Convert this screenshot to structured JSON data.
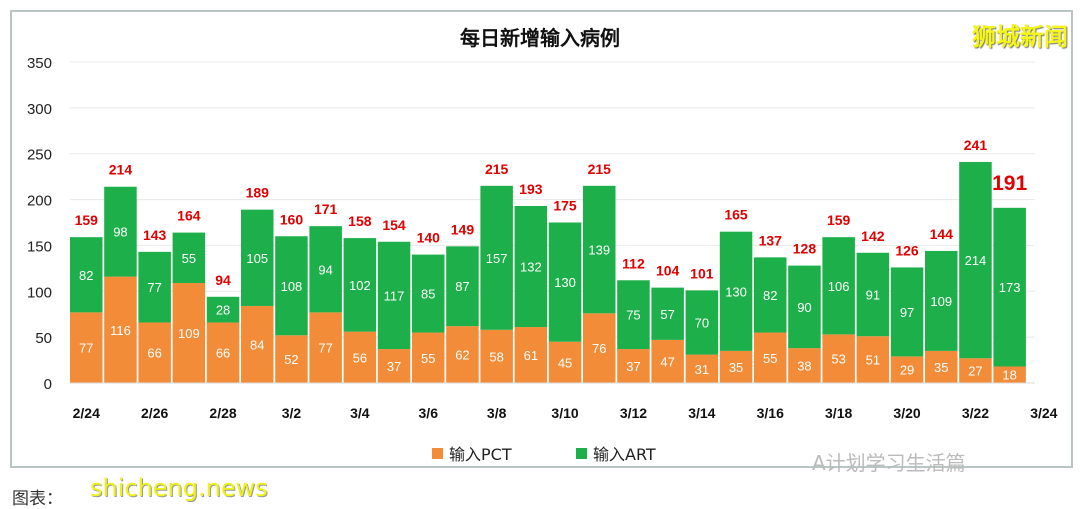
{
  "brand": "狮城新闻",
  "watermark_bottom": "A计划学习生活篇",
  "watermark_site": "shicheng.news",
  "caption": "图表：",
  "chart_data": {
    "type": "bar",
    "stacked": true,
    "title": "每日新增输入病例",
    "categories": [
      "2/24",
      "2/25",
      "2/26",
      "2/27",
      "2/28",
      "3/1",
      "3/2",
      "3/3",
      "3/4",
      "3/5",
      "3/6",
      "3/7",
      "3/8",
      "3/9",
      "3/10",
      "3/11",
      "3/12",
      "3/13",
      "3/14",
      "3/15",
      "3/16",
      "3/17",
      "3/18",
      "3/19",
      "3/20",
      "3/21",
      "3/22",
      "3/23"
    ],
    "x_tick_labels": [
      "2/24",
      "2/26",
      "2/28",
      "3/2",
      "3/4",
      "3/6",
      "3/8",
      "3/10",
      "3/12",
      "3/14",
      "3/16",
      "3/18",
      "3/20",
      "3/22",
      "3/24"
    ],
    "series": [
      {
        "name": "输入PCT",
        "color": "#F28C38",
        "values": [
          77,
          116,
          66,
          109,
          66,
          84,
          52,
          77,
          56,
          37,
          55,
          62,
          58,
          61,
          45,
          76,
          37,
          47,
          31,
          35,
          55,
          38,
          53,
          51,
          29,
          35,
          27,
          18
        ]
      },
      {
        "name": "输入ART",
        "color": "#1DAF4A",
        "values": [
          82,
          98,
          77,
          55,
          28,
          105,
          108,
          94,
          102,
          117,
          85,
          87,
          157,
          132,
          130,
          139,
          75,
          57,
          70,
          130,
          82,
          90,
          106,
          91,
          97,
          109,
          214,
          173
        ]
      }
    ],
    "totals": [
      159,
      214,
      143,
      164,
      94,
      189,
      160,
      171,
      158,
      154,
      140,
      149,
      215,
      193,
      175,
      215,
      112,
      104,
      101,
      165,
      137,
      128,
      159,
      142,
      126,
      144,
      241,
      191
    ],
    "total_label_color": "#E00000",
    "ylim": [
      0,
      350
    ],
    "yticks": [
      0,
      50,
      100,
      150,
      200,
      250,
      300,
      350
    ],
    "grid": true,
    "legend": "bottom"
  }
}
